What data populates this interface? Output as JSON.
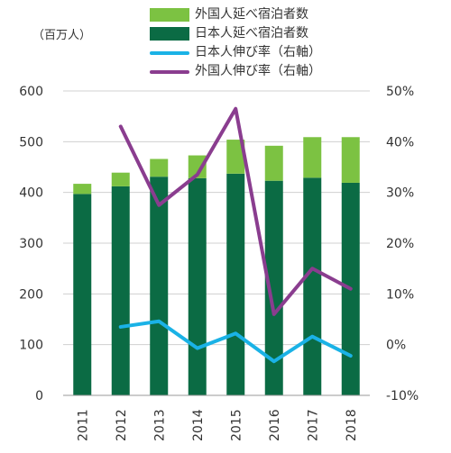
{
  "chart_data": {
    "type": "bar",
    "unit_label": "（百万人）",
    "categories": [
      "2011",
      "2012",
      "2013",
      "2014",
      "2015",
      "2016",
      "2017",
      "2018"
    ],
    "stacked": true,
    "series": [
      {
        "name": "日本人延べ宿泊者数",
        "color": "#0b6b44",
        "axis": "left",
        "kind": "bar",
        "values": [
          397,
          412,
          431,
          428,
          437,
          423,
          429,
          419
        ]
      },
      {
        "name": "外国人延べ宿泊者数",
        "color": "#7cc242",
        "axis": "left",
        "kind": "bar",
        "values": [
          20,
          27,
          35,
          45,
          67,
          69,
          80,
          90
        ]
      },
      {
        "name": "日本人伸び率（右軸）",
        "color": "#1ab2e6",
        "axis": "right",
        "kind": "line",
        "values": [
          null,
          3.5,
          4.6,
          -0.7,
          2.2,
          -3.3,
          1.6,
          -2.2
        ]
      },
      {
        "name": "外国人伸び率（右軸）",
        "color": "#8a3d8f",
        "axis": "right",
        "kind": "line",
        "values": [
          null,
          43,
          27.5,
          33.5,
          46.5,
          6,
          15,
          11
        ]
      }
    ],
    "legend_order": [
      "外国人延べ宿泊者数",
      "日本人延べ宿泊者数",
      "日本人伸び率（右軸）",
      "外国人伸び率（右軸）"
    ],
    "left_axis": {
      "min": 0,
      "max": 600,
      "ticks": [
        "0",
        "100",
        "200",
        "300",
        "400",
        "500",
        "600"
      ]
    },
    "right_axis": {
      "min": -10,
      "max": 50,
      "ticks": [
        "-10%",
        "0%",
        "10%",
        "20%",
        "30%",
        "40%",
        "50%"
      ]
    },
    "grid": true,
    "legend_position": "top"
  }
}
